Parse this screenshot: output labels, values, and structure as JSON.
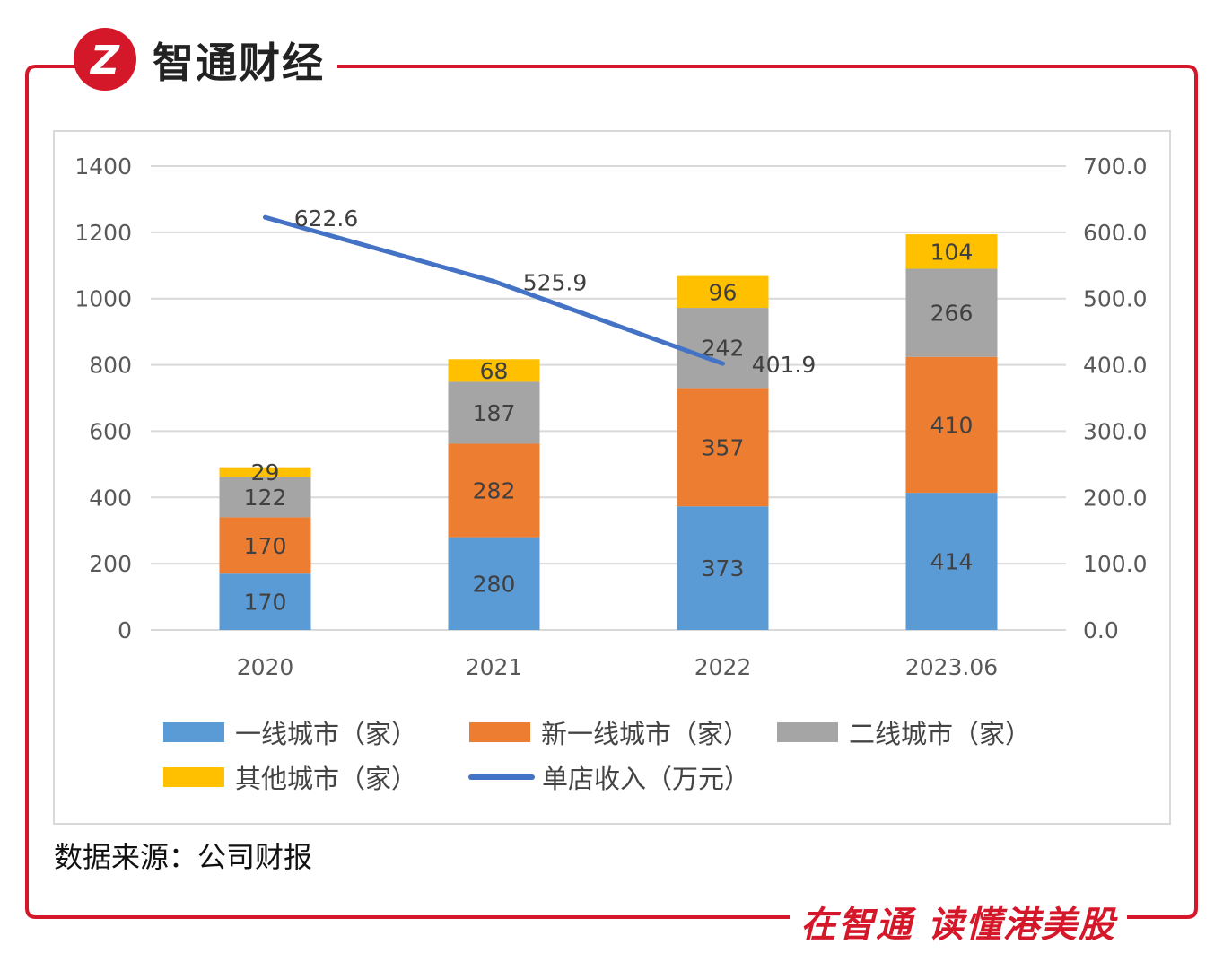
{
  "brand": {
    "name": "智通财经",
    "logo_glyph": "Z"
  },
  "source_note": "数据来源：公司财报",
  "slogan": "在智通 读懂港美股",
  "colors": {
    "frame": "#d5172a",
    "logo": "#d5172a",
    "slogan": "#d5172a"
  },
  "chart_data": {
    "type": "bar",
    "stacked": true,
    "categories": [
      "2020",
      "2021",
      "2022",
      "2023.06"
    ],
    "series": [
      {
        "name": "一线城市（家）",
        "color": "#5b9bd5",
        "values": [
          170,
          280,
          373,
          414
        ]
      },
      {
        "name": "新一线城市（家）",
        "color": "#ed7d31",
        "values": [
          170,
          282,
          357,
          410
        ]
      },
      {
        "name": "二线城市（家）",
        "color": "#a5a5a5",
        "values": [
          122,
          187,
          242,
          266
        ]
      },
      {
        "name": "其他城市（家）",
        "color": "#ffc000",
        "values": [
          29,
          68,
          96,
          104
        ]
      }
    ],
    "line_series": {
      "name": "单店收入（万元）",
      "color": "#4472c4",
      "axis": "right",
      "values": [
        622.6,
        525.9,
        401.9
      ]
    },
    "left_axis": {
      "min": 0,
      "max": 1400,
      "step": 200,
      "ticks": [
        "0",
        "200",
        "400",
        "600",
        "800",
        "1000",
        "1200",
        "1400"
      ]
    },
    "right_axis": {
      "min": 0,
      "max": 700,
      "step": 100,
      "ticks": [
        "0.0",
        "100.0",
        "200.0",
        "300.0",
        "400.0",
        "500.0",
        "600.0",
        "700.0"
      ]
    },
    "line_labels": [
      "622.6",
      "525.9",
      "401.9"
    ],
    "grid": true,
    "legend_position": "bottom"
  }
}
